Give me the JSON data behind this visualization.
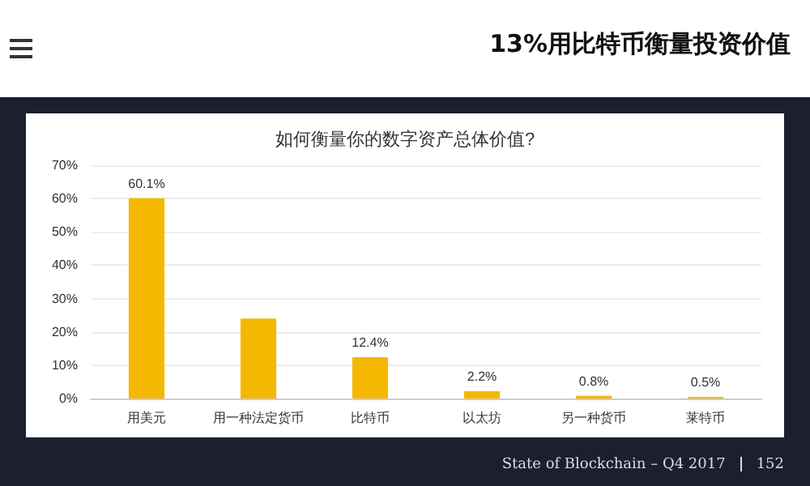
{
  "chart_data": {
    "type": "bar",
    "title": "13%用比特币衡量投资价值",
    "subtitle": "如何衡量你的数字资产总体价值?",
    "categories": [
      "用美元",
      "用一种法定货币",
      "比特币",
      "以太坊",
      "另一种货币",
      "莱特币"
    ],
    "values": [
      60.1,
      24,
      12.4,
      2.2,
      0.8,
      0.5
    ],
    "value_labels": [
      "60.1%",
      null,
      "12.4%",
      "2.2%",
      "0.8%",
      "0.5%"
    ],
    "color": "#f5b800",
    "ylim": [
      0,
      70
    ],
    "yticks": [
      {
        "value": 0,
        "label": "0%"
      },
      {
        "value": 10,
        "label": "10%"
      },
      {
        "value": 20,
        "label": "20%"
      },
      {
        "value": 30,
        "label": "30%"
      },
      {
        "value": 40,
        "label": "40%"
      },
      {
        "value": 50,
        "label": "50%"
      },
      {
        "value": 60,
        "label": "60%"
      },
      {
        "value": 70,
        "label": "70%"
      }
    ],
    "grid": "y",
    "annotations": [
      "State of Blockchain – Q4 2017",
      "152"
    ]
  }
}
